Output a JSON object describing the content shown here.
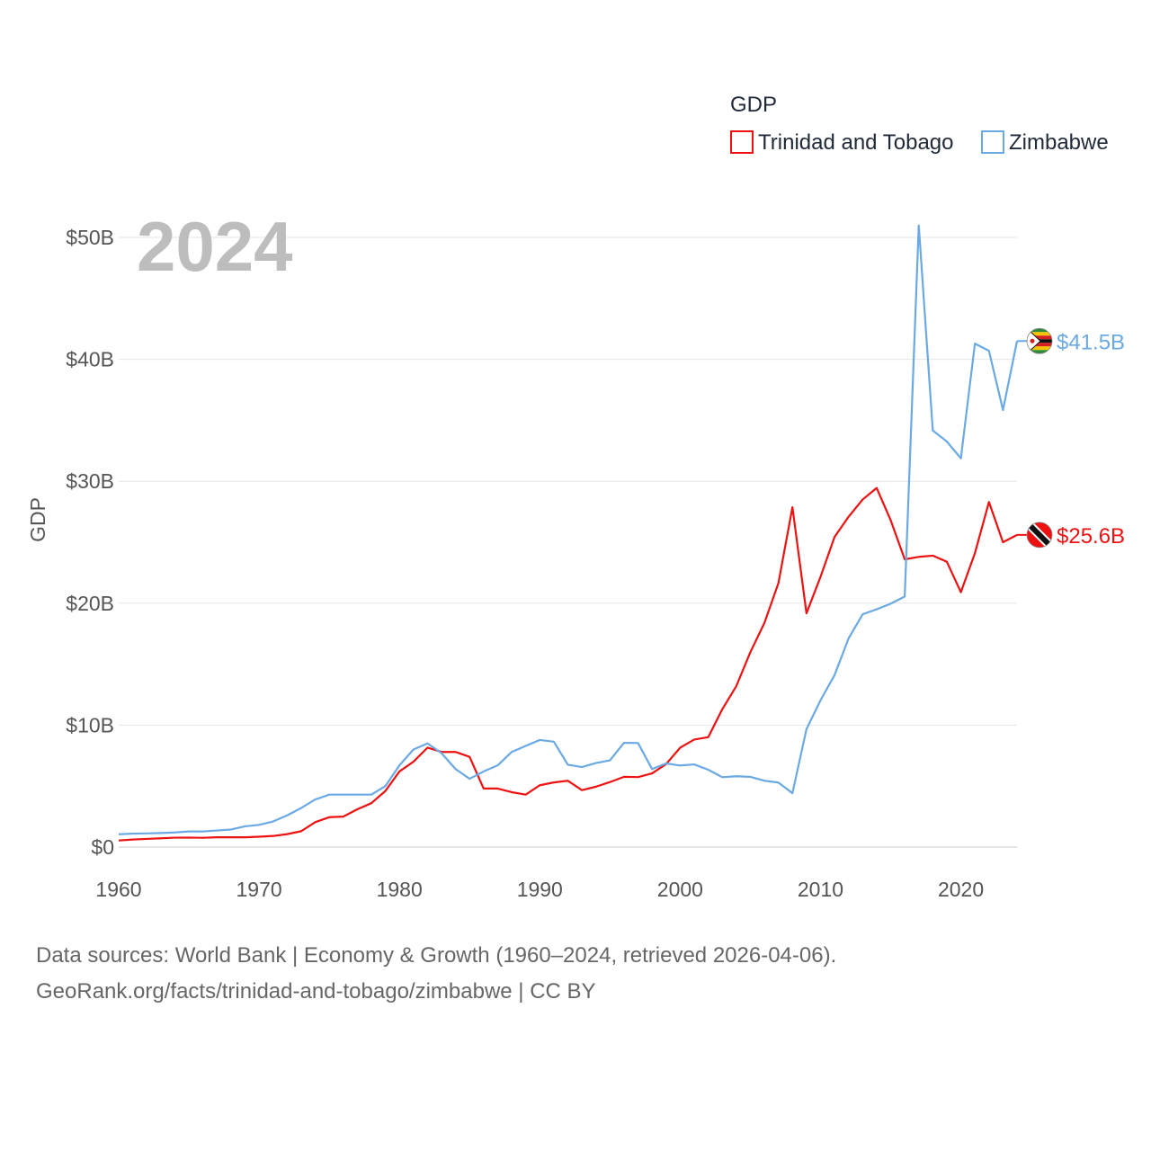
{
  "legend": {
    "title": "GDP",
    "items": [
      "Trinidad and Tobago",
      "Zimbabwe"
    ]
  },
  "year_label": "2024",
  "source": {
    "line1": "Data sources: World Bank | Economy & Growth (1960–2024, retrieved 2026-04-06).",
    "line2": "GeoRank.org/facts/trinidad-and-tobago/zimbabwe | CC BY"
  },
  "chart_data": {
    "type": "line",
    "title": "",
    "xlabel": "",
    "ylabel": "GDP",
    "xlim": [
      1960,
      2024
    ],
    "ylim": [
      0,
      52
    ],
    "unit": "billion USD",
    "x_ticks": [
      1960,
      1970,
      1980,
      1990,
      2000,
      2010,
      2020
    ],
    "x_tick_labels": [
      "1960",
      "1970",
      "1980",
      "1990",
      "2000",
      "2010",
      "2020"
    ],
    "y_ticks": [
      0,
      10,
      20,
      30,
      40,
      50
    ],
    "y_tick_labels": [
      "$0",
      "$10B",
      "$20B",
      "$30B",
      "$40B",
      "$50B"
    ],
    "legend_position": "top-right",
    "x": [
      1960,
      1961,
      1962,
      1963,
      1964,
      1965,
      1966,
      1967,
      1968,
      1969,
      1970,
      1971,
      1972,
      1973,
      1974,
      1975,
      1976,
      1977,
      1978,
      1979,
      1980,
      1981,
      1982,
      1983,
      1984,
      1985,
      1986,
      1987,
      1988,
      1989,
      1990,
      1991,
      1992,
      1993,
      1994,
      1995,
      1996,
      1997,
      1998,
      1999,
      2000,
      2001,
      2002,
      2003,
      2004,
      2005,
      2006,
      2007,
      2008,
      2009,
      2010,
      2011,
      2012,
      2013,
      2014,
      2015,
      2016,
      2017,
      2018,
      2019,
      2020,
      2021,
      2022,
      2023,
      2024
    ],
    "series": [
      {
        "name": "Trinidad and Tobago",
        "color": "#ee1111",
        "end_label": "$25.6B",
        "values": [
          0.54,
          0.62,
          0.67,
          0.72,
          0.77,
          0.78,
          0.76,
          0.8,
          0.8,
          0.8,
          0.85,
          0.91,
          1.06,
          1.3,
          2.04,
          2.45,
          2.5,
          3.1,
          3.6,
          4.6,
          6.2,
          7.0,
          8.15,
          7.8,
          7.8,
          7.4,
          4.8,
          4.8,
          4.5,
          4.3,
          5.07,
          5.3,
          5.44,
          4.67,
          4.95,
          5.33,
          5.76,
          5.74,
          6.04,
          6.81,
          8.15,
          8.82,
          9.01,
          11.3,
          13.2,
          15.98,
          18.37,
          21.64,
          27.87,
          19.17,
          22.16,
          25.43,
          27.09,
          28.5,
          29.45,
          26.8,
          23.6,
          23.8,
          23.9,
          23.4,
          20.9,
          24.1,
          28.3,
          25.0,
          25.6
        ]
      },
      {
        "name": "Zimbabwe",
        "color": "#6aa9e3",
        "end_label": "$41.5B",
        "values": [
          1.05,
          1.1,
          1.12,
          1.15,
          1.2,
          1.28,
          1.28,
          1.36,
          1.44,
          1.7,
          1.82,
          2.1,
          2.6,
          3.2,
          3.9,
          4.3,
          4.3,
          4.3,
          4.3,
          5.0,
          6.7,
          8.0,
          8.5,
          7.7,
          6.4,
          5.6,
          6.2,
          6.7,
          7.8,
          8.3,
          8.78,
          8.64,
          6.75,
          6.56,
          6.89,
          7.11,
          8.55,
          8.53,
          6.4,
          6.86,
          6.69,
          6.78,
          6.34,
          5.73,
          5.81,
          5.76,
          5.44,
          5.29,
          4.42,
          9.67,
          12.04,
          14.1,
          17.11,
          19.09,
          19.5,
          19.96,
          20.55,
          50.98,
          34.16,
          33.26,
          31.88,
          41.29,
          40.7,
          35.84,
          41.5
        ]
      }
    ]
  }
}
